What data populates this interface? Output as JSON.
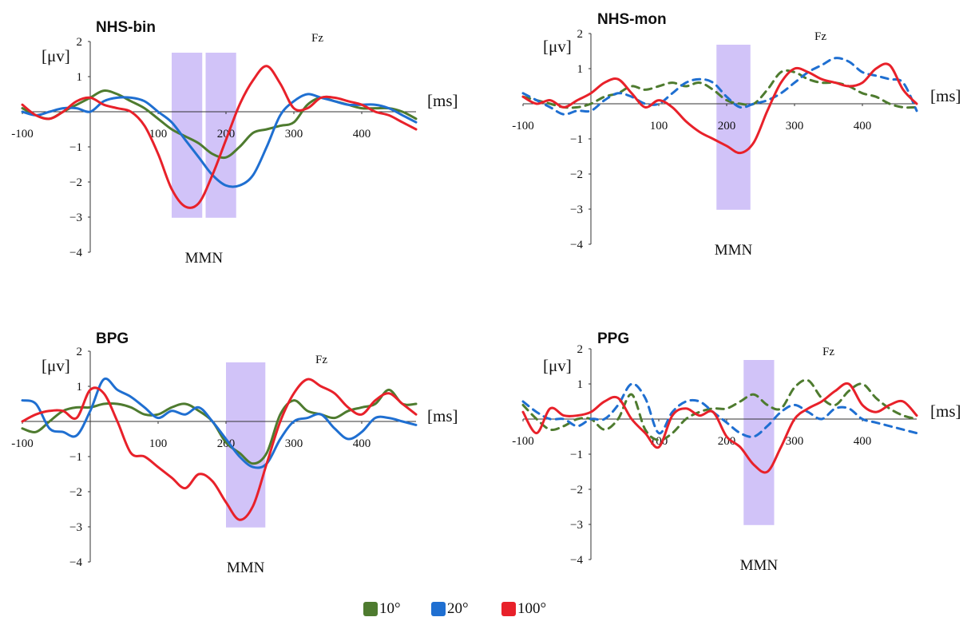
{
  "legend": {
    "items": [
      {
        "label": "10°",
        "color": "#4e7b2f"
      },
      {
        "label": "20°",
        "color": "#1f6fd1"
      },
      {
        "label": "100°",
        "color": "#e8212a"
      }
    ]
  },
  "chart_data": [
    {
      "type": "line",
      "title": "NHS-bin",
      "electrode": "Fz",
      "ylabel": "[μv]",
      "xlabel": "[ms]",
      "xlim": [
        -100,
        480
      ],
      "ylim": [
        -4,
        2
      ],
      "xticks": [
        -100,
        100,
        200,
        300,
        400
      ],
      "yticks": [
        2,
        1,
        -1,
        -2,
        -3,
        -4
      ],
      "mmn_label": "MMN",
      "mmn_windows": [
        [
          120,
          165
        ],
        [
          170,
          215
        ]
      ],
      "series": [
        {
          "name": "10°",
          "color": "#4e7b2f",
          "dashed": false,
          "x": [
            -100,
            -80,
            -60,
            -40,
            -20,
            0,
            20,
            40,
            60,
            80,
            100,
            120,
            140,
            160,
            180,
            200,
            220,
            240,
            260,
            280,
            300,
            320,
            340,
            360,
            380,
            400,
            420,
            440,
            460,
            480
          ],
          "y": [
            0.1,
            -0.1,
            -0.2,
            0.0,
            0.2,
            0.4,
            0.6,
            0.5,
            0.3,
            0.1,
            -0.2,
            -0.5,
            -0.7,
            -0.9,
            -1.2,
            -1.3,
            -1.0,
            -0.6,
            -0.5,
            -0.4,
            -0.3,
            0.2,
            0.4,
            0.3,
            0.2,
            0.1,
            0.1,
            0.1,
            0.0,
            -0.2
          ]
        },
        {
          "name": "20°",
          "color": "#1f6fd1",
          "dashed": false,
          "x": [
            -100,
            -80,
            -60,
            -40,
            -20,
            0,
            20,
            40,
            60,
            80,
            100,
            120,
            140,
            160,
            180,
            200,
            220,
            240,
            260,
            280,
            300,
            320,
            340,
            360,
            380,
            400,
            420,
            440,
            460,
            480
          ],
          "y": [
            0.0,
            -0.1,
            0.0,
            0.1,
            0.1,
            0.0,
            0.3,
            0.4,
            0.4,
            0.3,
            0.0,
            -0.3,
            -0.8,
            -1.3,
            -1.8,
            -2.1,
            -2.1,
            -1.8,
            -1.0,
            -0.1,
            0.3,
            0.5,
            0.4,
            0.3,
            0.2,
            0.2,
            0.2,
            0.1,
            -0.1,
            -0.3
          ]
        },
        {
          "name": "100°",
          "color": "#e8212a",
          "dashed": false,
          "x": [
            -100,
            -80,
            -60,
            -40,
            -20,
            0,
            20,
            40,
            60,
            80,
            100,
            120,
            140,
            160,
            180,
            200,
            220,
            240,
            260,
            280,
            300,
            320,
            340,
            360,
            380,
            400,
            420,
            440,
            460,
            480
          ],
          "y": [
            0.2,
            -0.1,
            -0.2,
            0.0,
            0.3,
            0.4,
            0.2,
            0.1,
            0.0,
            -0.4,
            -1.2,
            -2.2,
            -2.7,
            -2.6,
            -1.8,
            -0.8,
            0.2,
            0.9,
            1.3,
            0.8,
            0.1,
            0.1,
            0.4,
            0.4,
            0.3,
            0.2,
            0.0,
            -0.1,
            -0.3,
            -0.5
          ]
        }
      ]
    },
    {
      "type": "line",
      "title": "NHS-mon",
      "electrode": "Fz",
      "ylabel": "[μv]",
      "xlabel": "[ms]",
      "xlim": [
        -100,
        480
      ],
      "ylim": [
        -4,
        2
      ],
      "xticks": [
        -100,
        100,
        200,
        300,
        400
      ],
      "yticks": [
        2,
        1,
        -1,
        -2,
        -3,
        -4
      ],
      "mmn_label": "MMN",
      "mmn_windows": [
        [
          185,
          235
        ]
      ],
      "series": [
        {
          "name": "10°",
          "color": "#4e7b2f",
          "dashed": true,
          "x": [
            -100,
            -80,
            -60,
            -40,
            -20,
            0,
            20,
            40,
            60,
            80,
            100,
            120,
            140,
            160,
            180,
            200,
            220,
            240,
            260,
            280,
            300,
            320,
            340,
            360,
            380,
            400,
            420,
            440,
            460,
            480
          ],
          "y": [
            0.2,
            0.1,
            0.0,
            -0.1,
            -0.1,
            0.0,
            0.2,
            0.3,
            0.5,
            0.4,
            0.5,
            0.6,
            0.5,
            0.6,
            0.4,
            0.1,
            0.0,
            0.0,
            0.4,
            0.9,
            0.9,
            0.7,
            0.6,
            0.6,
            0.5,
            0.3,
            0.2,
            0.0,
            -0.1,
            -0.1
          ]
        },
        {
          "name": "20°",
          "color": "#1f6fd1",
          "dashed": true,
          "x": [
            -100,
            -80,
            -60,
            -40,
            -20,
            0,
            20,
            40,
            60,
            80,
            100,
            120,
            140,
            160,
            180,
            200,
            220,
            240,
            260,
            280,
            300,
            320,
            340,
            360,
            380,
            400,
            420,
            440,
            460,
            480
          ],
          "y": [
            0.3,
            0.1,
            -0.1,
            -0.3,
            -0.2,
            -0.2,
            0.1,
            0.3,
            0.2,
            0.0,
            0.0,
            0.3,
            0.6,
            0.7,
            0.6,
            0.2,
            -0.1,
            0.0,
            0.1,
            0.3,
            0.6,
            0.9,
            1.1,
            1.3,
            1.2,
            0.9,
            0.8,
            0.7,
            0.6,
            -0.2
          ]
        },
        {
          "name": "100°",
          "color": "#e8212a",
          "dashed": false,
          "x": [
            -100,
            -80,
            -60,
            -40,
            -20,
            0,
            20,
            40,
            60,
            80,
            100,
            120,
            140,
            160,
            180,
            200,
            220,
            240,
            260,
            280,
            300,
            320,
            340,
            360,
            380,
            400,
            420,
            440,
            460,
            480
          ],
          "y": [
            0.2,
            0.0,
            0.1,
            -0.1,
            0.1,
            0.3,
            0.6,
            0.7,
            0.3,
            -0.1,
            0.1,
            -0.1,
            -0.5,
            -0.8,
            -1.0,
            -1.2,
            -1.4,
            -1.1,
            -0.2,
            0.6,
            1.0,
            0.9,
            0.7,
            0.6,
            0.5,
            0.6,
            1.0,
            1.1,
            0.4,
            0.0
          ]
        }
      ]
    },
    {
      "type": "line",
      "title": "BPG",
      "electrode": "Fz",
      "ylabel": "[μv]",
      "xlabel": "[ms]",
      "xlim": [
        -100,
        480
      ],
      "ylim": [
        -4,
        2
      ],
      "xticks": [
        -100,
        100,
        200,
        300,
        400
      ],
      "yticks": [
        2,
        1,
        -1,
        -2,
        -3,
        -4
      ],
      "mmn_label": "MMN",
      "mmn_windows": [
        [
          200,
          258
        ]
      ],
      "series": [
        {
          "name": "10°",
          "color": "#4e7b2f",
          "dashed": false,
          "x": [
            -100,
            -80,
            -60,
            -40,
            -20,
            0,
            20,
            40,
            60,
            80,
            100,
            120,
            140,
            160,
            180,
            200,
            220,
            240,
            260,
            280,
            300,
            320,
            340,
            360,
            380,
            400,
            420,
            440,
            460,
            480
          ],
          "y": [
            -0.2,
            -0.3,
            0.0,
            0.3,
            0.4,
            0.4,
            0.5,
            0.5,
            0.4,
            0.2,
            0.2,
            0.4,
            0.5,
            0.3,
            0.0,
            -0.6,
            -0.9,
            -1.2,
            -0.9,
            0.2,
            0.6,
            0.3,
            0.2,
            0.1,
            0.3,
            0.4,
            0.5,
            0.9,
            0.5,
            0.5
          ]
        },
        {
          "name": "20°",
          "color": "#1f6fd1",
          "dashed": false,
          "x": [
            -100,
            -80,
            -60,
            -40,
            -20,
            0,
            20,
            40,
            60,
            80,
            100,
            120,
            140,
            160,
            180,
            200,
            220,
            240,
            260,
            280,
            300,
            320,
            340,
            360,
            380,
            400,
            420,
            440,
            460,
            480
          ],
          "y": [
            0.6,
            0.5,
            -0.2,
            -0.3,
            -0.4,
            0.3,
            1.2,
            0.9,
            0.7,
            0.4,
            0.1,
            0.3,
            0.2,
            0.4,
            0.0,
            -0.5,
            -1.0,
            -1.3,
            -1.2,
            -0.5,
            0.0,
            0.1,
            0.2,
            -0.2,
            -0.5,
            -0.3,
            0.1,
            0.1,
            0.0,
            -0.1
          ]
        },
        {
          "name": "100°",
          "color": "#e8212a",
          "dashed": false,
          "x": [
            -100,
            -80,
            -60,
            -40,
            -20,
            0,
            20,
            40,
            60,
            80,
            100,
            120,
            140,
            160,
            180,
            200,
            220,
            240,
            260,
            280,
            300,
            320,
            340,
            360,
            380,
            400,
            420,
            440,
            460,
            480
          ],
          "y": [
            0.0,
            0.2,
            0.3,
            0.3,
            0.1,
            0.9,
            0.8,
            0.0,
            -0.9,
            -1.0,
            -1.3,
            -1.6,
            -1.9,
            -1.5,
            -1.7,
            -2.3,
            -2.8,
            -2.4,
            -1.2,
            0.0,
            0.8,
            1.2,
            1.0,
            0.8,
            0.4,
            0.2,
            0.6,
            0.8,
            0.5,
            0.2
          ]
        }
      ]
    },
    {
      "type": "line",
      "title": "PPG",
      "electrode": "Fz",
      "ylabel": "[μv]",
      "xlabel": "[ms]",
      "xlim": [
        -100,
        480
      ],
      "ylim": [
        -4,
        2
      ],
      "xticks": [
        -100,
        100,
        200,
        300,
        400
      ],
      "yticks": [
        2,
        1,
        -1,
        -2,
        -3,
        -4
      ],
      "mmn_label": "MMN",
      "mmn_windows": [
        [
          225,
          270
        ]
      ],
      "series": [
        {
          "name": "10°",
          "color": "#4e7b2f",
          "dashed": true,
          "x": [
            -100,
            -80,
            -60,
            -40,
            -20,
            0,
            20,
            40,
            60,
            80,
            100,
            120,
            140,
            160,
            180,
            200,
            220,
            240,
            260,
            280,
            300,
            320,
            340,
            360,
            380,
            400,
            420,
            440,
            460,
            480
          ],
          "y": [
            0.4,
            0.0,
            -0.3,
            -0.2,
            0.0,
            0.0,
            -0.3,
            0.0,
            0.7,
            -0.3,
            -0.6,
            -0.4,
            0.0,
            0.2,
            0.3,
            0.3,
            0.5,
            0.7,
            0.4,
            0.3,
            0.9,
            1.1,
            0.6,
            0.4,
            0.8,
            1.0,
            0.6,
            0.3,
            0.1,
            0.0
          ]
        },
        {
          "name": "20°",
          "color": "#1f6fd1",
          "dashed": true,
          "x": [
            -100,
            -80,
            -60,
            -40,
            -20,
            0,
            20,
            40,
            60,
            80,
            100,
            120,
            140,
            160,
            180,
            200,
            220,
            240,
            260,
            280,
            300,
            320,
            340,
            360,
            380,
            400,
            420,
            440,
            460,
            480
          ],
          "y": [
            0.5,
            0.2,
            0.0,
            0.0,
            -0.2,
            0.0,
            0.0,
            0.4,
            1.0,
            0.6,
            -0.4,
            0.2,
            0.5,
            0.5,
            0.2,
            -0.1,
            -0.4,
            -0.5,
            -0.2,
            0.2,
            0.4,
            0.2,
            0.0,
            0.3,
            0.3,
            0.0,
            -0.1,
            -0.2,
            -0.3,
            -0.4
          ]
        },
        {
          "name": "100°",
          "color": "#e8212a",
          "dashed": false,
          "x": [
            -100,
            -80,
            -60,
            -40,
            -20,
            0,
            20,
            40,
            60,
            80,
            100,
            120,
            140,
            160,
            180,
            200,
            220,
            240,
            260,
            280,
            300,
            320,
            340,
            360,
            380,
            400,
            420,
            440,
            460,
            480
          ],
          "y": [
            0.2,
            -0.4,
            0.3,
            0.1,
            0.1,
            0.2,
            0.5,
            0.6,
            0.0,
            -0.4,
            -0.8,
            0.1,
            0.3,
            0.1,
            0.2,
            -0.5,
            -0.8,
            -1.3,
            -1.5,
            -0.8,
            0.0,
            0.3,
            0.5,
            0.8,
            1.0,
            0.4,
            0.2,
            0.4,
            0.5,
            0.1
          ]
        }
      ]
    }
  ]
}
